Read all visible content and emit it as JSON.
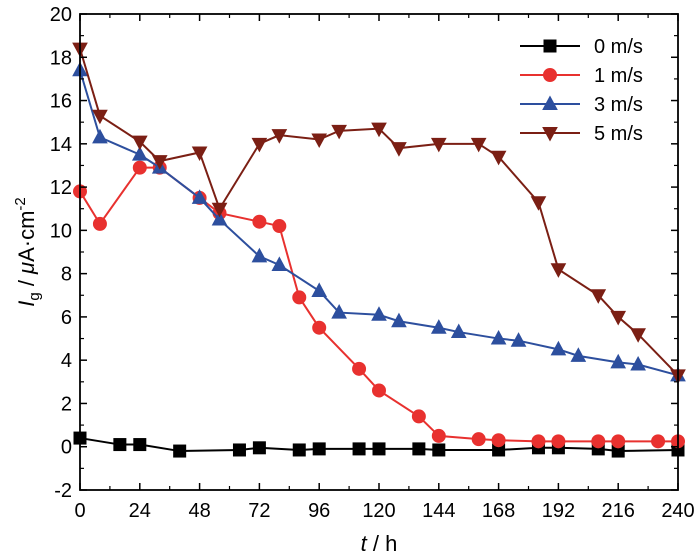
{
  "chart_data": {
    "type": "line",
    "xlabel": {
      "var": "t",
      "sep": " / ",
      "unit": "h"
    },
    "ylabel": {
      "var": "I",
      "sub": "g",
      "sep": " / ",
      "mu": "μ",
      "unit": "A·cm",
      "sup": "-2"
    },
    "xlim": [
      0,
      240
    ],
    "ylim": [
      -2,
      20
    ],
    "xticks": [
      0,
      24,
      48,
      72,
      96,
      120,
      144,
      168,
      192,
      216,
      240
    ],
    "yticks": [
      -2,
      0,
      2,
      4,
      6,
      8,
      10,
      12,
      14,
      16,
      18,
      20
    ],
    "grid": false,
    "legend_position": "top-right",
    "series": [
      {
        "name": "0 m/s",
        "color": "#000000",
        "marker": "square",
        "x": [
          0,
          16,
          24,
          40,
          64,
          72,
          88,
          96,
          112,
          120,
          136,
          144,
          168,
          184,
          192,
          208,
          216,
          240
        ],
        "y": [
          0.4,
          0.1,
          0.1,
          -0.2,
          -0.15,
          -0.05,
          -0.15,
          -0.1,
          -0.1,
          -0.1,
          -0.1,
          -0.15,
          -0.15,
          -0.05,
          -0.05,
          -0.1,
          -0.2,
          -0.15
        ]
      },
      {
        "name": "1 m/s",
        "color": "#e8312f",
        "marker": "circle",
        "x": [
          0,
          8,
          24,
          32,
          48,
          56,
          72,
          80,
          88,
          96,
          112,
          120,
          136,
          144,
          160,
          168,
          184,
          192,
          208,
          216,
          232,
          240
        ],
        "y": [
          11.8,
          10.3,
          12.9,
          12.9,
          11.5,
          10.8,
          10.4,
          10.2,
          6.9,
          5.5,
          3.6,
          2.6,
          1.4,
          0.5,
          0.35,
          0.3,
          0.25,
          0.25,
          0.25,
          0.25,
          0.25,
          0.25
        ]
      },
      {
        "name": "3 m/s",
        "color": "#2d4f9e",
        "marker": "triangle-up",
        "x": [
          0,
          8,
          24,
          32,
          48,
          56,
          72,
          80,
          96,
          104,
          120,
          128,
          144,
          152,
          168,
          176,
          192,
          200,
          216,
          224,
          240
        ],
        "y": [
          17.4,
          14.3,
          13.5,
          12.9,
          11.5,
          10.5,
          8.8,
          8.4,
          7.2,
          6.2,
          6.1,
          5.8,
          5.5,
          5.3,
          5.0,
          4.9,
          4.5,
          4.2,
          3.9,
          3.8,
          3.3
        ]
      },
      {
        "name": "5 m/s",
        "color": "#7b1f14",
        "marker": "triangle-down",
        "x": [
          0,
          8,
          24,
          32,
          48,
          56,
          72,
          80,
          96,
          104,
          120,
          128,
          144,
          160,
          168,
          184,
          192,
          208,
          216,
          224,
          240
        ],
        "y": [
          18.4,
          15.3,
          14.1,
          13.2,
          13.6,
          11.0,
          14.0,
          14.4,
          14.2,
          14.6,
          14.7,
          13.8,
          14.0,
          14.0,
          13.4,
          11.3,
          8.2,
          7.0,
          6.0,
          5.2,
          3.3
        ]
      }
    ]
  }
}
